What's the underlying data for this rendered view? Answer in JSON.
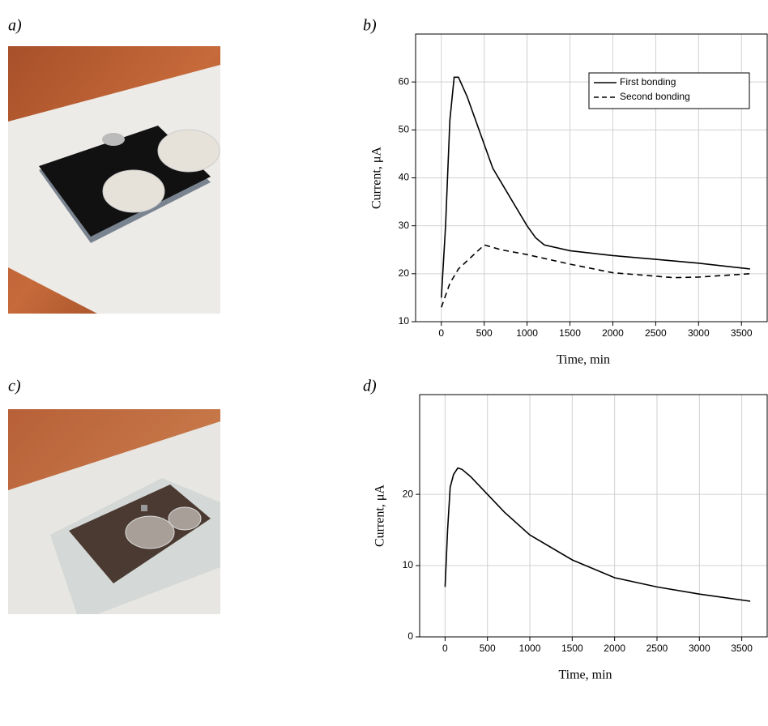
{
  "panel_labels": [
    "a)",
    "b)",
    "c)",
    "d)"
  ],
  "chart_data": [
    {
      "type": "line",
      "xlabel": "Time, min",
      "ylabel": "Current, μA",
      "xlim": [
        -300,
        3800
      ],
      "ylim": [
        10,
        70
      ],
      "xticks": [
        0,
        500,
        1000,
        1500,
        2000,
        2500,
        3000,
        3500
      ],
      "yticks": [
        10,
        20,
        30,
        40,
        50,
        60
      ],
      "grid": true,
      "legend": "upper right",
      "series": [
        {
          "name": "First bonding",
          "color": "#000000",
          "dash": false,
          "x": [
            0,
            50,
            100,
            150,
            200,
            300,
            400,
            500,
            600,
            800,
            1000,
            1100,
            1200,
            1500,
            2000,
            2500,
            3000,
            3600
          ],
          "values": [
            15,
            30,
            52,
            61,
            61,
            57,
            52,
            47,
            42,
            36,
            30,
            27.5,
            26,
            24.8,
            23.8,
            23,
            22.2,
            21
          ]
        },
        {
          "name": "Second  bonding",
          "color": "#000000",
          "dash": true,
          "x": [
            0,
            100,
            200,
            500,
            700,
            1000,
            1500,
            2000,
            2700,
            3000,
            3600
          ],
          "values": [
            13,
            18,
            21,
            26,
            25,
            24,
            22,
            20.2,
            19.2,
            19.3,
            20
          ]
        }
      ]
    },
    {
      "type": "line",
      "xlabel": "Time, min",
      "ylabel": "Current, μA",
      "xlim": [
        -300,
        3800
      ],
      "ylim": [
        0,
        34
      ],
      "xticks": [
        0,
        500,
        1000,
        1500,
        2000,
        2500,
        3000,
        3500
      ],
      "yticks": [
        0,
        10,
        20
      ],
      "grid": true,
      "series": [
        {
          "color": "#000000",
          "dash": false,
          "x": [
            0,
            30,
            60,
            100,
            150,
            200,
            300,
            500,
            700,
            1000,
            1500,
            2000,
            2500,
            3000,
            3600
          ],
          "values": [
            7,
            15,
            21,
            22.8,
            23.7,
            23.5,
            22.5,
            20,
            17.5,
            14.3,
            10.8,
            8.3,
            7,
            6,
            5
          ]
        }
      ]
    }
  ]
}
